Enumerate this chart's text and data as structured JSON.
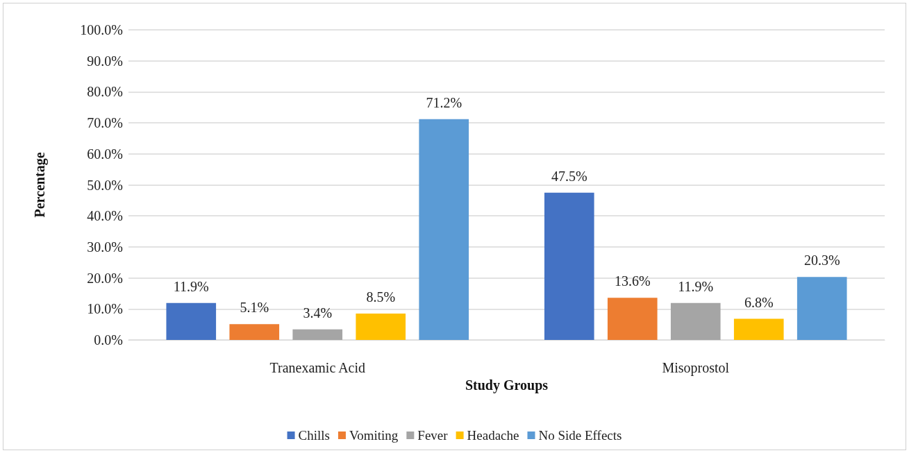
{
  "chart_data": {
    "type": "bar",
    "xlabel": "Study Groups",
    "ylabel": "Percentage",
    "categories": [
      "Tranexamic Acid",
      "Misoprostol"
    ],
    "series": [
      {
        "name": "Chills",
        "color": "#4472c4",
        "values": [
          11.9,
          47.5
        ],
        "value_labels": [
          "11.9%",
          "47.5%"
        ]
      },
      {
        "name": "Vomiting",
        "color": "#ed7d31",
        "values": [
          5.1,
          13.6
        ],
        "value_labels": [
          "5.1%",
          "13.6%"
        ]
      },
      {
        "name": "Fever",
        "color": "#a5a5a5",
        "values": [
          3.4,
          11.9
        ],
        "value_labels": [
          "3.4%",
          "11.9%"
        ]
      },
      {
        "name": "Headache",
        "color": "#ffc000",
        "values": [
          8.5,
          6.8
        ],
        "value_labels": [
          "8.5%",
          "6.8%"
        ]
      },
      {
        "name": "No Side Effects",
        "color": "#5b9bd5",
        "values": [
          71.2,
          20.3
        ],
        "value_labels": [
          "71.2%",
          "20.3%"
        ]
      }
    ],
    "ylim": [
      0,
      100
    ],
    "yticks": [
      {
        "value": 0,
        "label": "0.0%"
      },
      {
        "value": 10,
        "label": "10.0%"
      },
      {
        "value": 20,
        "label": "20.0%"
      },
      {
        "value": 30,
        "label": "30.0%"
      },
      {
        "value": 40,
        "label": "40.0%"
      },
      {
        "value": 50,
        "label": "50.0%"
      },
      {
        "value": 60,
        "label": "60.0%"
      },
      {
        "value": 70,
        "label": "70.0%"
      },
      {
        "value": 80,
        "label": "80.0%"
      },
      {
        "value": 90,
        "label": "90.0%"
      },
      {
        "value": 100,
        "label": "100.0%"
      }
    ],
    "grid": "y",
    "legend": "bottom"
  }
}
